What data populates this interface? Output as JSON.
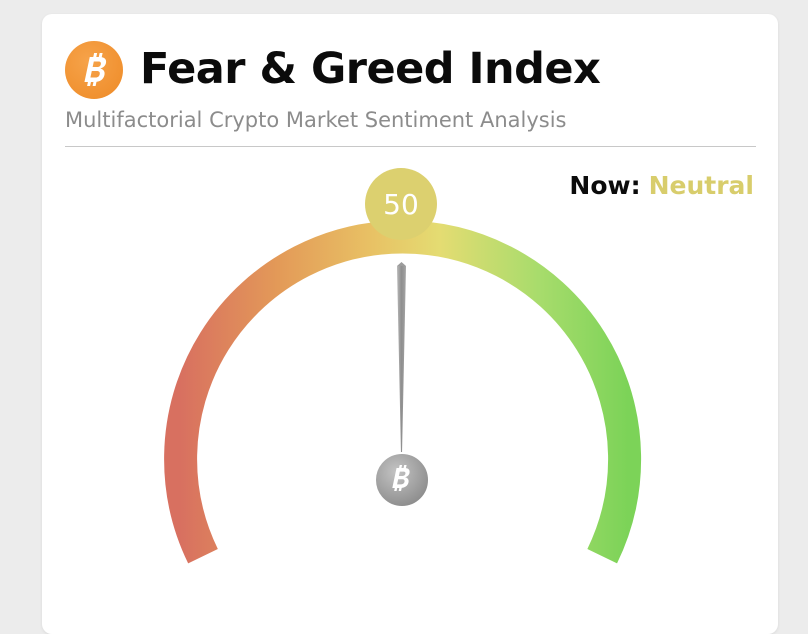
{
  "header": {
    "logo_icon": "bitcoin-icon",
    "title": "Fear & Greed Index",
    "subtitle": "Multifactorial Crypto Market Sentiment Analysis"
  },
  "status": {
    "now_label": "Now:",
    "classification": "Neutral",
    "classification_color": "#d8cd6c"
  },
  "gauge": {
    "value": 50,
    "value_text": "50",
    "min": 0,
    "max": 100,
    "bubble_color": "#dcd06f",
    "scale_colors": [
      "#d87060",
      "#e39a58",
      "#e8c064",
      "#e4dc72",
      "#a8dc6c",
      "#7cd358"
    ],
    "needle_color": "#9a9a9a",
    "hub_icon": "bitcoin-icon"
  },
  "colors": {
    "logo": "#ee8a26",
    "title": "#0b0b0b",
    "subtitle": "#8c8c8c"
  }
}
